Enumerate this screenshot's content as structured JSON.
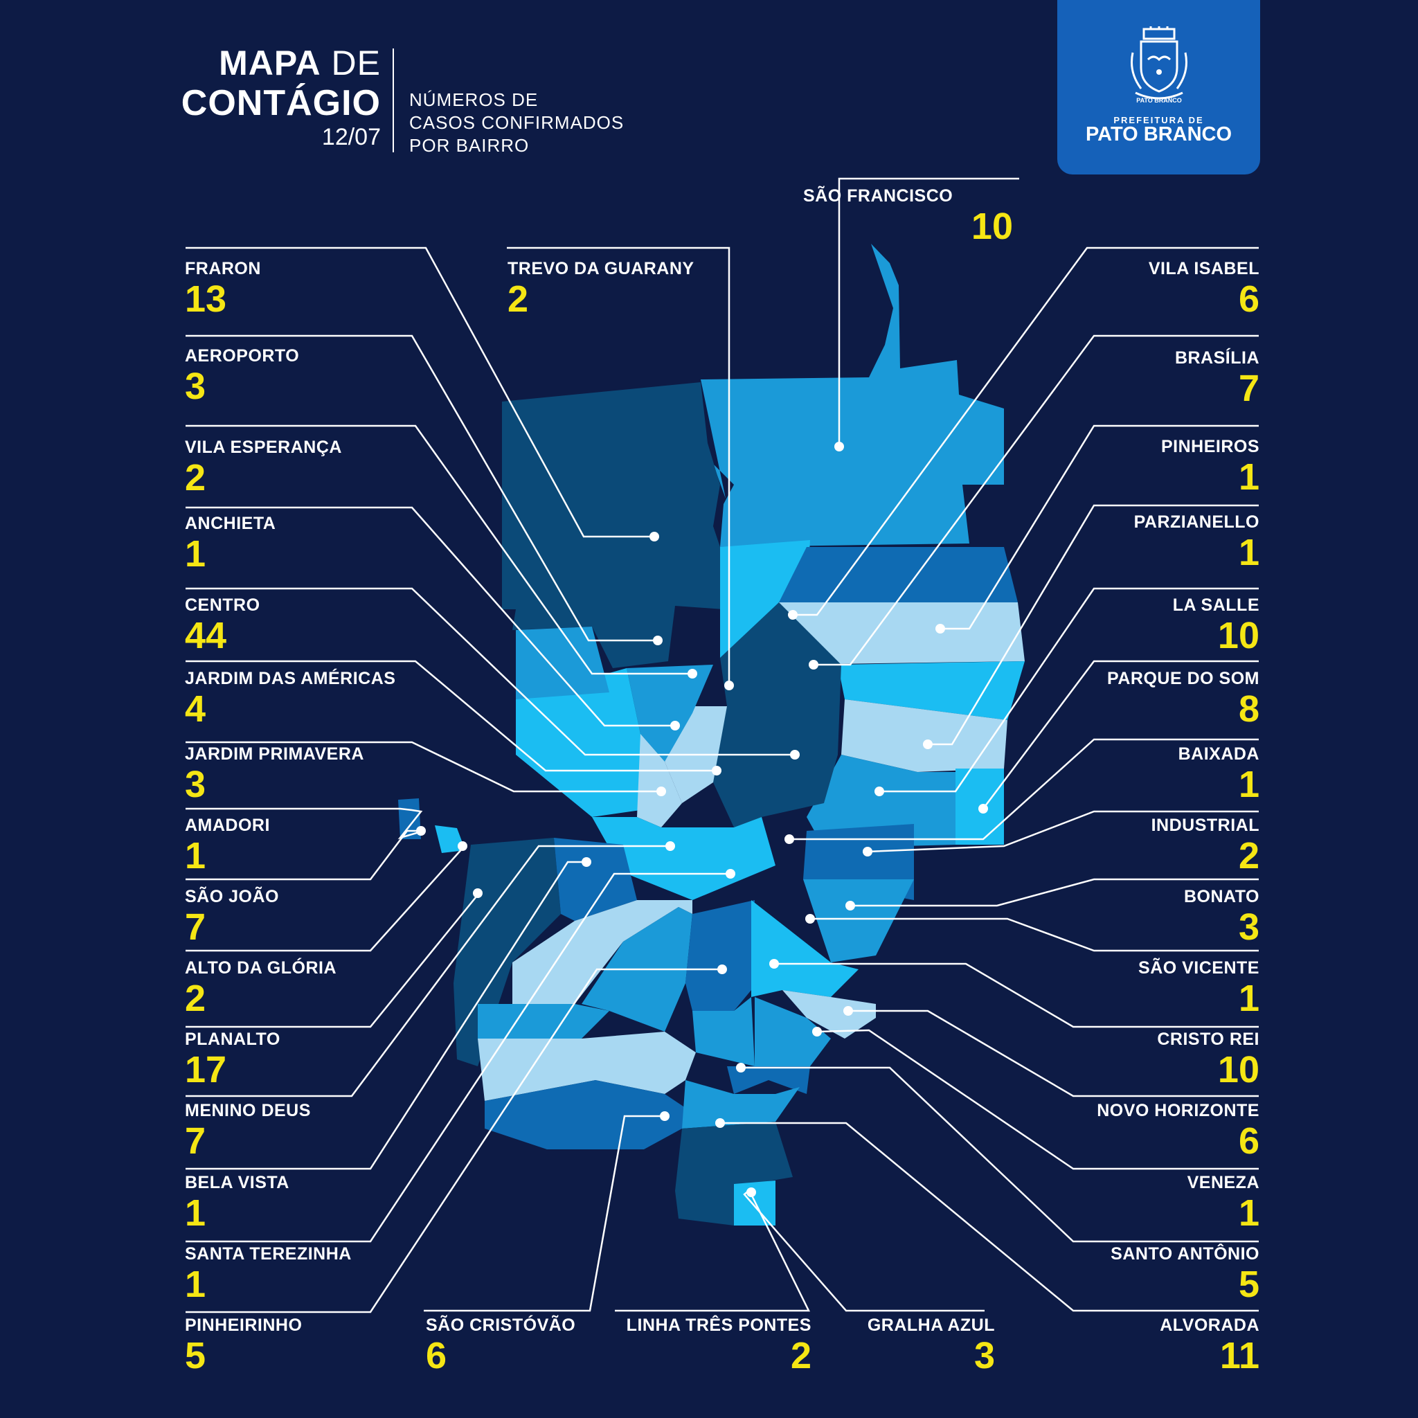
{
  "header": {
    "title_bold_1": "MAPA",
    "title_light_1": "DE",
    "title_bold_2": "CONTÁGIO",
    "date": "12/07",
    "subtitle_lines": [
      "NÚMEROS DE",
      "CASOS CONFIRMADOS",
      "POR BAIRRO"
    ]
  },
  "logo": {
    "badge_text": "PATO BRANCO",
    "org_line": "PREFEITURA DE",
    "org_name": "PATO BRANCO",
    "icon": "city-coat-of-arms-icon"
  },
  "colors": {
    "background": "#0d1b45",
    "count": "#f5e614",
    "label": "#ffffff",
    "logo_panel": "#1561b9",
    "region_shades": [
      "#0b4a78",
      "#0f6bb3",
      "#1b9ad8",
      "#1bbdf2",
      "#a8d8f2"
    ]
  },
  "neighborhoods": [
    {
      "name": "FRARON",
      "count": "13"
    },
    {
      "name": "AEROPORTO",
      "count": "3"
    },
    {
      "name": "VILA ESPERANÇA",
      "count": "2"
    },
    {
      "name": "ANCHIETA",
      "count": "1"
    },
    {
      "name": "CENTRO",
      "count": "44"
    },
    {
      "name": "JARDIM DAS AMÉRICAS",
      "count": "4"
    },
    {
      "name": "JARDIM PRIMAVERA",
      "count": "3"
    },
    {
      "name": "AMADORI",
      "count": "1"
    },
    {
      "name": "SÃO JOÃO",
      "count": "7"
    },
    {
      "name": "ALTO DA GLÓRIA",
      "count": "2"
    },
    {
      "name": "PLANALTO",
      "count": "17"
    },
    {
      "name": "MENINO DEUS",
      "count": "7"
    },
    {
      "name": "BELA VISTA",
      "count": "1"
    },
    {
      "name": "SANTA TEREZINHA",
      "count": "1"
    },
    {
      "name": "PINHEIRINHO",
      "count": "5"
    },
    {
      "name": "TREVO DA GUARANY",
      "count": "2"
    },
    {
      "name": "SÃO CRISTÓVÃO",
      "count": "6"
    },
    {
      "name": "LINHA TRÊS PONTES",
      "count": "2"
    },
    {
      "name": "GRALHA AZUL",
      "count": "3"
    },
    {
      "name": "SÃO FRANCISCO",
      "count": "10"
    },
    {
      "name": "VILA ISABEL",
      "count": "6"
    },
    {
      "name": "BRASÍLIA",
      "count": "7"
    },
    {
      "name": "PINHEIROS",
      "count": "1"
    },
    {
      "name": "PARZIANELLO",
      "count": "1"
    },
    {
      "name": "LA SALLE",
      "count": "10"
    },
    {
      "name": "PARQUE DO SOM",
      "count": "8"
    },
    {
      "name": "BAIXADA",
      "count": "1"
    },
    {
      "name": "INDUSTRIAL",
      "count": "2"
    },
    {
      "name": "BONATO",
      "count": "3"
    },
    {
      "name": "SÃO VICENTE",
      "count": "1"
    },
    {
      "name": "CRISTO REI",
      "count": "10"
    },
    {
      "name": "NOVO HORIZONTE",
      "count": "6"
    },
    {
      "name": "VENEZA",
      "count": "1"
    },
    {
      "name": "SANTO ANTÔNIO",
      "count": "5"
    },
    {
      "name": "ALVORADA",
      "count": "11"
    }
  ]
}
